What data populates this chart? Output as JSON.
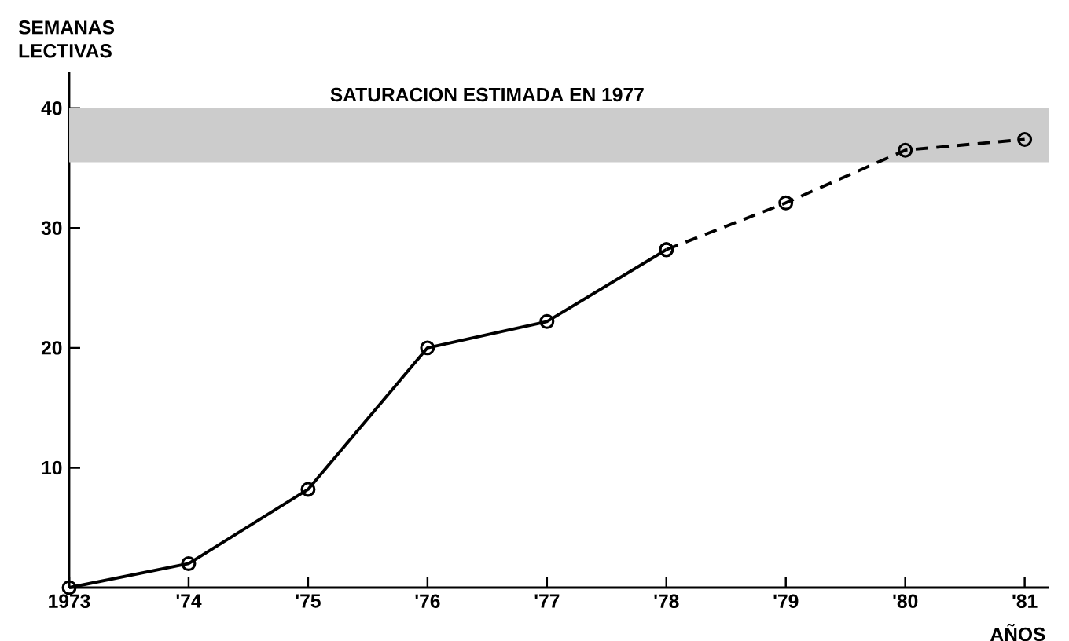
{
  "chart_data": {
    "type": "line",
    "xlabel": "AÑOS",
    "ylabel": "SEMANAS LECTIVAS",
    "xlim": [
      1973,
      1981.2
    ],
    "ylim": [
      0,
      43
    ],
    "xticks": [
      1973,
      {
        "value": 1974,
        "label": "'74"
      },
      {
        "value": 1975,
        "label": "'75"
      },
      {
        "value": 1976,
        "label": "'76"
      },
      {
        "value": 1977,
        "label": "'77"
      },
      {
        "value": 1978,
        "label": "'78"
      },
      {
        "value": 1979,
        "label": "'79"
      },
      {
        "value": 1980,
        "label": "'80"
      },
      {
        "value": 1981,
        "label": "'81"
      }
    ],
    "yticks": [
      10,
      20,
      30,
      40
    ],
    "marker": "circle",
    "grid": false,
    "series": [
      {
        "color": "#000000",
        "line_style": "solid",
        "x": [
          1973,
          1974,
          1975,
          1976,
          1977,
          1978
        ],
        "values": [
          0,
          2.0,
          8.2,
          20.0,
          22.2,
          28.2
        ]
      },
      {
        "color": "#000000",
        "line_style": "dashed",
        "x": [
          1978,
          1979,
          1980,
          1981
        ],
        "values": [
          28.2,
          32.1,
          36.5,
          37.4
        ]
      }
    ],
    "bands": [
      {
        "axis": "y",
        "from": 35.5,
        "to": 40,
        "label": "SATURACION ESTIMADA EN 1977",
        "color": "#cccccc"
      }
    ]
  }
}
